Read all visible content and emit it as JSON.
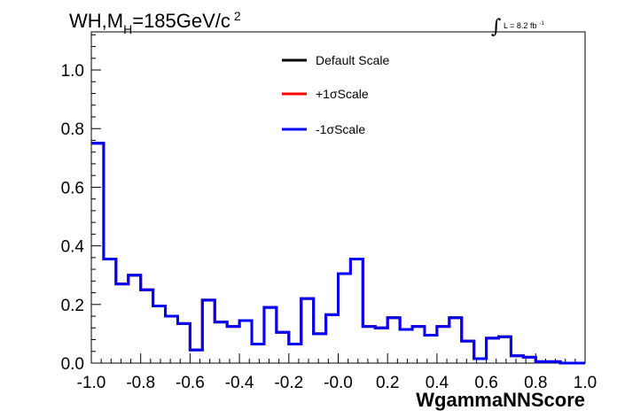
{
  "chart_data": {
    "type": "line",
    "title_parts": {
      "main": "WH,M",
      "sub": "H",
      "rest": "=185GeV/c",
      "sup": "2"
    },
    "lumi_label": {
      "text": "L = 8.2 fb",
      "sup": "-1"
    },
    "xlabel": "WgammaNNScore",
    "ylabel": "",
    "xlim": [
      -1.0,
      1.0
    ],
    "ylim": [
      0.0,
      1.13
    ],
    "grid": false,
    "legend_position": "top-center",
    "x_ticks": [
      "-1.0",
      "-0.8",
      "-0.6",
      "-0.4",
      "-0.2",
      "-0.0",
      "0.2",
      "0.4",
      "0.6",
      "0.8",
      "1.0"
    ],
    "y_ticks": [
      "0.0",
      "0.2",
      "0.4",
      "0.6",
      "0.8",
      "1.0"
    ],
    "bin_edges": [
      -1.0,
      -0.95,
      -0.9,
      -0.85,
      -0.8,
      -0.75,
      -0.7,
      -0.65,
      -0.6,
      -0.55,
      -0.5,
      -0.45,
      -0.4,
      -0.35,
      -0.3,
      -0.25,
      -0.2,
      -0.15,
      -0.1,
      -0.05,
      0.0,
      0.05,
      0.1,
      0.15,
      0.2,
      0.25,
      0.3,
      0.35,
      0.4,
      0.45,
      0.5,
      0.55,
      0.6,
      0.65,
      0.7,
      0.75,
      0.8,
      0.85,
      0.9,
      0.95,
      1.0
    ],
    "series": [
      {
        "name": "Default Scale",
        "color": "#000000",
        "values": [
          0.75,
          0.355,
          0.27,
          0.3,
          0.25,
          0.195,
          0.16,
          0.135,
          0.045,
          0.215,
          0.14,
          0.125,
          0.145,
          0.065,
          0.19,
          0.105,
          0.065,
          0.22,
          0.1,
          0.165,
          0.305,
          0.355,
          0.125,
          0.12,
          0.155,
          0.115,
          0.125,
          0.095,
          0.125,
          0.155,
          0.075,
          0.015,
          0.085,
          0.09,
          0.025,
          0.02,
          0.005,
          0.005,
          0.0,
          0.0
        ]
      },
      {
        "name": "+1σScale",
        "color": "#ff0000",
        "values": [
          0.75,
          0.355,
          0.27,
          0.3,
          0.25,
          0.195,
          0.16,
          0.135,
          0.045,
          0.215,
          0.14,
          0.125,
          0.145,
          0.065,
          0.19,
          0.105,
          0.065,
          0.22,
          0.1,
          0.165,
          0.305,
          0.355,
          0.125,
          0.12,
          0.155,
          0.115,
          0.125,
          0.095,
          0.125,
          0.155,
          0.075,
          0.015,
          0.085,
          0.09,
          0.025,
          0.02,
          0.005,
          0.005,
          0.0,
          0.0
        ]
      },
      {
        "name": "-1σScale",
        "color": "#0000ff",
        "values": [
          0.75,
          0.355,
          0.27,
          0.3,
          0.25,
          0.195,
          0.16,
          0.135,
          0.045,
          0.215,
          0.14,
          0.125,
          0.145,
          0.065,
          0.19,
          0.105,
          0.065,
          0.22,
          0.1,
          0.165,
          0.305,
          0.355,
          0.125,
          0.12,
          0.155,
          0.115,
          0.125,
          0.095,
          0.125,
          0.155,
          0.075,
          0.015,
          0.085,
          0.09,
          0.025,
          0.02,
          0.005,
          0.005,
          0.0,
          0.0
        ]
      }
    ]
  }
}
